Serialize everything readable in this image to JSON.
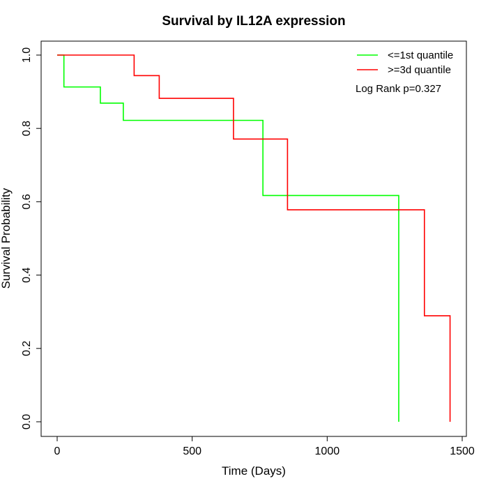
{
  "chart_data": {
    "type": "line",
    "step": true,
    "title": "Survival by IL12A expression",
    "xlabel": "Time (Days)",
    "ylabel": "Survival Probability",
    "xlim": [
      0,
      1500
    ],
    "ylim": [
      0,
      1
    ],
    "xticks": [
      0,
      500,
      1000,
      1500
    ],
    "yticks": [
      0.0,
      0.2,
      0.4,
      0.6,
      0.8,
      1.0
    ],
    "xtick_labels": [
      "0",
      "500",
      "1000",
      "1500"
    ],
    "ytick_labels": [
      "0.0",
      "0.2",
      "0.4",
      "0.6",
      "0.8",
      "1.0"
    ],
    "grid": false,
    "legend_position": "top-right",
    "annotation": "Log Rank p=0.327",
    "series": [
      {
        "name": "<=1st quantile",
        "color": "#00ff00",
        "x": [
          0,
          25,
          160,
          245,
          762,
          1265
        ],
        "y": [
          1.0,
          0.913,
          0.869,
          0.822,
          0.617,
          0.0
        ]
      },
      {
        "name": ">=3d quantile",
        "color": "#ff0000",
        "x": [
          0,
          285,
          378,
          653,
          853,
          1360,
          1455
        ],
        "y": [
          1.0,
          0.944,
          0.882,
          0.771,
          0.578,
          0.289,
          0.0
        ]
      }
    ]
  }
}
